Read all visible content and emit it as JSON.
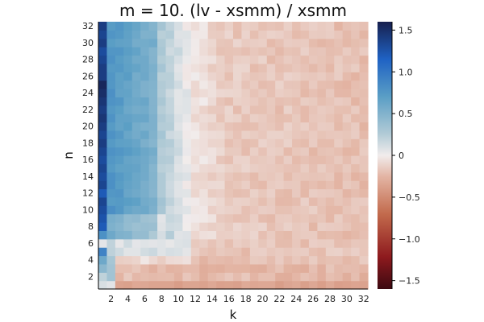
{
  "chart_data": {
    "type": "heatmap",
    "title": "m = 10. (lv - xsmm) / xsmm",
    "xlabel": "k",
    "ylabel": "n",
    "x": [
      1,
      2,
      3,
      4,
      5,
      6,
      7,
      8,
      9,
      10,
      11,
      12,
      13,
      14,
      15,
      16,
      17,
      18,
      19,
      20,
      21,
      22,
      23,
      24,
      25,
      26,
      27,
      28,
      29,
      30,
      31,
      32
    ],
    "y": [
      1,
      2,
      3,
      4,
      5,
      6,
      7,
      8,
      9,
      10,
      11,
      12,
      13,
      14,
      15,
      16,
      17,
      18,
      19,
      20,
      21,
      22,
      23,
      24,
      25,
      26,
      27,
      28,
      29,
      30,
      31,
      32
    ],
    "x_ticks": [
      "2",
      "4",
      "6",
      "8",
      "10",
      "12",
      "14",
      "16",
      "18",
      "20",
      "22",
      "24",
      "26",
      "28",
      "30",
      "32"
    ],
    "y_ticks": [
      "2",
      "4",
      "6",
      "8",
      "10",
      "12",
      "14",
      "16",
      "18",
      "20",
      "22",
      "24",
      "26",
      "28",
      "30",
      "32"
    ],
    "colorbar_ticks": [
      "1.5",
      "1.0",
      "0.5",
      "0",
      "−0.5",
      "−1.0",
      "−1.5"
    ],
    "colorbar_tick_values": [
      1.5,
      1.0,
      0.5,
      0,
      -0.5,
      -1.0,
      -1.5
    ],
    "color_range": [
      -1.6,
      1.6
    ],
    "k1_column": [
      0.1,
      0.2,
      0.45,
      0.6,
      0.9,
      0.05,
      0.8,
      1.2,
      1.25,
      1.3,
      1.35,
      1.2,
      1.35,
      1.3,
      1.35,
      1.3,
      1.35,
      1.4,
      1.35,
      1.4,
      1.45,
      1.4,
      1.45,
      1.5,
      1.55,
      1.4,
      1.4,
      1.35,
      1.3,
      1.4,
      1.35,
      1.4
    ],
    "grid": false,
    "colorscale": "balance (red-white-blue)"
  }
}
